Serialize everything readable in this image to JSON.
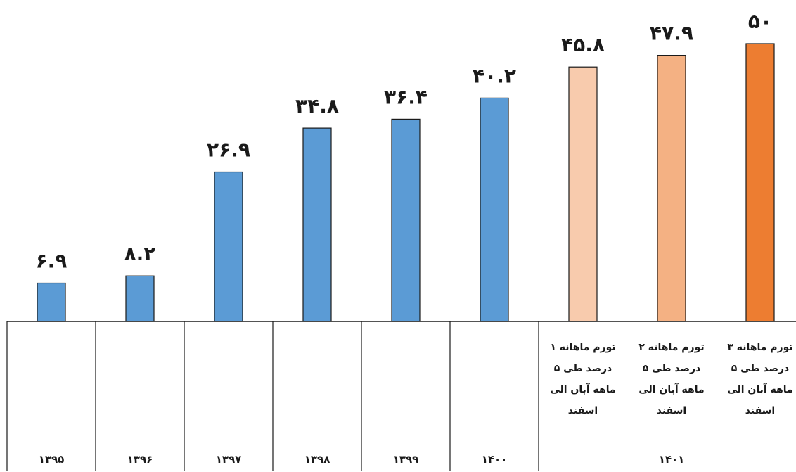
{
  "chart_data": {
    "type": "bar",
    "categories": [
      "۱۳۹۵",
      "۱۳۹۶",
      "۱۳۹۷",
      "۱۳۹۸",
      "۱۳۹۹",
      "۱۴۰۰",
      "تورم ماهانه ۱ درصد طی ۵ ماهه آبان الی اسفند",
      "تورم ماهانه ۲ درصد طی ۵ ماهه آبان الی اسفند",
      "تورم ماهانه ۳ درصد طی ۵ ماهه آبان الی اسفند"
    ],
    "values": [
      6.9,
      8.2,
      26.9,
      34.8,
      36.4,
      40.2,
      45.8,
      47.9,
      50
    ],
    "value_labels": [
      "۶.۹",
      "۸.۲",
      "۲۶.۹",
      "۳۴.۸",
      "۳۶.۴",
      "۴۰.۲",
      "۴۵.۸",
      "۴۷.۹",
      "۵۰"
    ],
    "scenario_lines": [
      [
        "تورم ماهانه ۱",
        "درصد طی ۵",
        "ماهه آبان الی",
        "اسفند"
      ],
      [
        "تورم ماهانه ۲",
        "درصد طی ۵",
        "ماهه آبان الی",
        "اسفند"
      ],
      [
        "تورم ماهانه ۳",
        "درصد طی ۵",
        "ماهه آبان الی",
        "اسفند"
      ]
    ],
    "group_labels": [
      "۱۳۹۵",
      "۱۳۹۶",
      "۱۳۹۷",
      "۱۳۹۸",
      "۱۳۹۹",
      "۱۴۰۰",
      "۱۴۰۱"
    ],
    "colors": [
      "#5B9BD5",
      "#5B9BD5",
      "#5B9BD5",
      "#5B9BD5",
      "#5B9BD5",
      "#5B9BD5",
      "#F8CBAD",
      "#F4B183",
      "#ED7D31"
    ],
    "ylim": [
      0,
      50
    ],
    "title": "",
    "xlabel": "",
    "ylabel": "",
    "grid": false,
    "legend": false
  }
}
